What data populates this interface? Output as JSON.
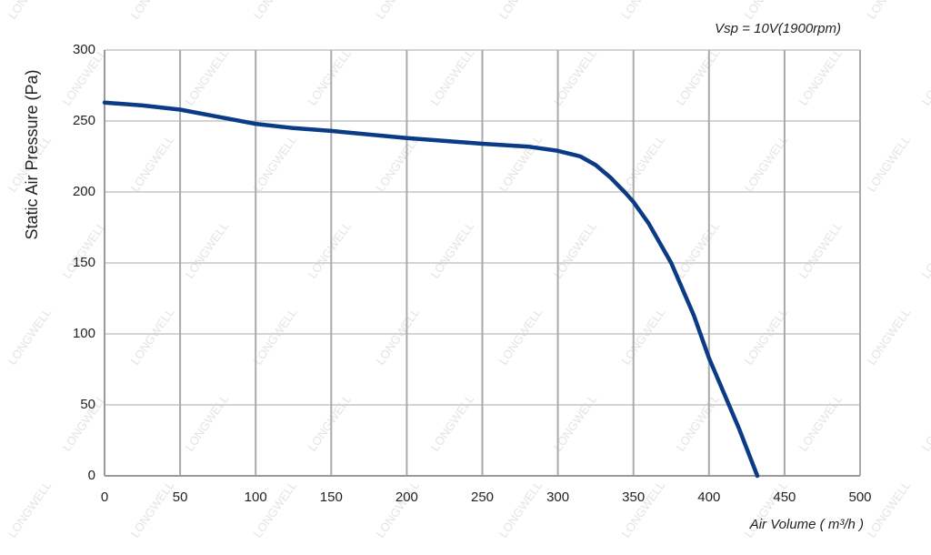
{
  "chart_data": {
    "type": "line",
    "annotation": "Vsp = 10V(1900rpm)",
    "x_label": "Air Volume ( m³/h )",
    "y_label": "Static Air Pressure  (Pa)",
    "watermark": "LONGWELL",
    "x": [
      0,
      25,
      50,
      75,
      100,
      125,
      150,
      200,
      250,
      280,
      300,
      315,
      325,
      335,
      345,
      350,
      360,
      375,
      390,
      400,
      410,
      420,
      432
    ],
    "series": [
      {
        "name": "Static Air Pressure",
        "color": "#0b3a86",
        "values": [
          263,
          261,
          258,
          253,
          248,
          245,
          243,
          238,
          234,
          232,
          229,
          225,
          219,
          210,
          199,
          193,
          178,
          150,
          113,
          83,
          58,
          33,
          0
        ]
      }
    ],
    "xlim": [
      0,
      500
    ],
    "ylim": [
      0,
      300
    ],
    "xticks": [
      0,
      50,
      100,
      150,
      200,
      250,
      300,
      350,
      400,
      450,
      500
    ],
    "yticks": [
      0,
      50,
      100,
      150,
      200,
      250,
      300
    ],
    "grid": true
  }
}
